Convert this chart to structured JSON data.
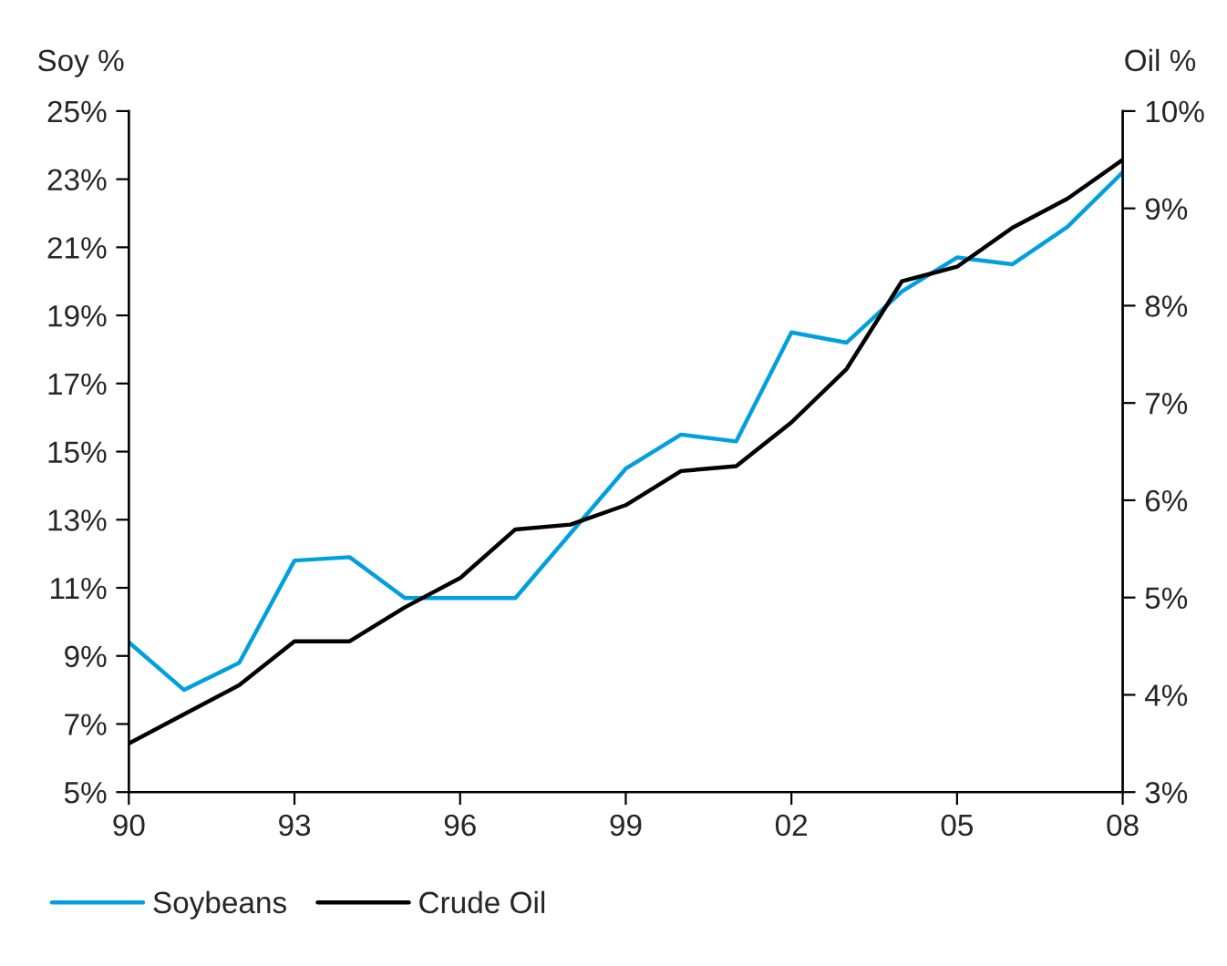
{
  "chart_data": {
    "type": "line",
    "ylabel": "Soy %",
    "y2label": "Oil %",
    "x": [
      1990,
      1991,
      1992,
      1993,
      1994,
      1995,
      1996,
      1997,
      1998,
      1999,
      2000,
      2001,
      2002,
      2003,
      2004,
      2005,
      2006,
      2007,
      2008
    ],
    "xlim": [
      1990,
      2008
    ],
    "xticks": [
      {
        "value": 1990,
        "label": "90"
      },
      {
        "value": 1993,
        "label": "93"
      },
      {
        "value": 1996,
        "label": "96"
      },
      {
        "value": 1999,
        "label": "99"
      },
      {
        "value": 2002,
        "label": "02"
      },
      {
        "value": 2005,
        "label": "05"
      },
      {
        "value": 2008,
        "label": "08"
      }
    ],
    "ylim": [
      5,
      25
    ],
    "yticks": [
      {
        "value": 5,
        "label": "5%"
      },
      {
        "value": 7,
        "label": "7%"
      },
      {
        "value": 9,
        "label": "9%"
      },
      {
        "value": 11,
        "label": "11%"
      },
      {
        "value": 13,
        "label": "13%"
      },
      {
        "value": 15,
        "label": "15%"
      },
      {
        "value": 17,
        "label": "17%"
      },
      {
        "value": 19,
        "label": "19%"
      },
      {
        "value": 21,
        "label": "21%"
      },
      {
        "value": 23,
        "label": "23%"
      },
      {
        "value": 25,
        "label": "25%"
      }
    ],
    "y2lim": [
      3,
      10
    ],
    "y2ticks": [
      {
        "value": 3,
        "label": "3%"
      },
      {
        "value": 4,
        "label": "4%"
      },
      {
        "value": 5,
        "label": "5%"
      },
      {
        "value": 6,
        "label": "6%"
      },
      {
        "value": 7,
        "label": "7%"
      },
      {
        "value": 8,
        "label": "8%"
      },
      {
        "value": 9,
        "label": "9%"
      },
      {
        "value": 10,
        "label": "10%"
      }
    ],
    "series": [
      {
        "name": "Soybeans",
        "color": "#00a0e0",
        "values": [
          9.4,
          8.0,
          8.8,
          11.8,
          11.9,
          10.7,
          10.7,
          10.7,
          12.6,
          14.5,
          15.5,
          15.3,
          18.5,
          18.2,
          19.7,
          20.7,
          20.5,
          21.6,
          23.2
        ]
      },
      {
        "name": "Crude Oil",
        "color": "#000000",
        "axis": "y2",
        "values": [
          3.5,
          3.8,
          4.1,
          4.55,
          4.55,
          4.9,
          5.2,
          5.7,
          5.75,
          5.95,
          6.3,
          6.35,
          6.8,
          7.35,
          8.25,
          8.4,
          8.8,
          9.1,
          9.5
        ]
      }
    ],
    "legend": "bottom",
    "grid": false
  }
}
